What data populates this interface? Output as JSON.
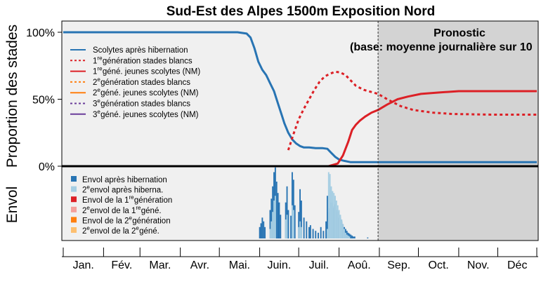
{
  "chart_data": {
    "type": "line",
    "title": "Sud-Est des Alpes 1500m Exposition Nord",
    "ylabel_top": "Proportion des stades",
    "ylabel_bottom": "Envol",
    "yticks": [
      {
        "label": "100%",
        "value": 1.0
      },
      {
        "label": "50%",
        "value": 0.5
      },
      {
        "label": "0%",
        "value": 0.0
      }
    ],
    "ylim": [
      0,
      1
    ],
    "months": [
      "Jan.",
      "Fév.",
      "Mar.",
      "Avr.",
      "Mai.",
      "Juin.",
      "Juil.",
      "Aoû.",
      "Sep.",
      "Oct.",
      "Nov.",
      "Déc"
    ],
    "xlim_days": [
      1,
      365
    ],
    "forecast_start_day": 243,
    "forecast_label": "Pronostic",
    "forecast_sublabel": "(base: moyenne journalière sur 10",
    "colors": {
      "blue": "#2874b3",
      "red": "#dc2026",
      "orange": "#ff7f0e",
      "purple": "#6a3d9a",
      "lightblue": "#a6cee3",
      "pink": "#f4a09b",
      "lightorange": "#fdbf6f",
      "panel": "#f0f0f0",
      "forecast": "#d3d3d3"
    },
    "legend_top": [
      {
        "text": "Scolytes après hibernation",
        "sup": "",
        "text2": "",
        "color": "#2874b3",
        "dash": false
      },
      {
        "text": "1",
        "sup": "re",
        "text2": " génération stades blancs",
        "color": "#dc2026",
        "dash": true
      },
      {
        "text": "1",
        "sup": "re",
        "text2": " géné. jeunes scolytes (NM)",
        "color": "#dc2026",
        "dash": false
      },
      {
        "text": "2",
        "sup": "e",
        "text2": " génération stades blancs",
        "color": "#ff7f0e",
        "dash": true
      },
      {
        "text": "2",
        "sup": "e",
        "text2": " géné. jeunes scolytes (NM)",
        "color": "#ff7f0e",
        "dash": false
      },
      {
        "text": "3",
        "sup": "e",
        "text2": " génération stades blancs",
        "color": "#6a3d9a",
        "dash": true
      },
      {
        "text": "3",
        "sup": "e",
        "text2": " géné. jeunes scolytes (NM)",
        "color": "#6a3d9a",
        "dash": false
      }
    ],
    "legend_bottom": [
      {
        "text": "Envol après hibernation",
        "sup": "",
        "text2": "",
        "color": "#2874b3"
      },
      {
        "text": "2",
        "sup": "e",
        "text2": " envol après hiberna.",
        "color": "#a6cee3"
      },
      {
        "text": "Envol de la 1",
        "sup": "re",
        "text2": " génération",
        "color": "#dc2026"
      },
      {
        "text": "2",
        "sup": "e",
        "text2": " envol de la 1",
        "sup2": "re",
        "text3": " géné.",
        "color": "#f4a09b"
      },
      {
        "text": "Envol de la 2",
        "sup": "e",
        "text2": " génération",
        "color": "#ff7f0e"
      },
      {
        "text": "2",
        "sup": "e",
        "text2": " envol de la 2",
        "sup2": "e",
        "text3": " géné.",
        "color": "#fdbf6f"
      }
    ],
    "series": [
      {
        "name": "Scolytes après hibernation",
        "color": "#2874b3",
        "dash": false,
        "points": [
          [
            1,
            1.0
          ],
          [
            135,
            1.0
          ],
          [
            142,
            0.99
          ],
          [
            145,
            0.96
          ],
          [
            148,
            0.88
          ],
          [
            151,
            0.78
          ],
          [
            154,
            0.72
          ],
          [
            157,
            0.68
          ],
          [
            160,
            0.62
          ],
          [
            163,
            0.56
          ],
          [
            166,
            0.47
          ],
          [
            169,
            0.38
          ],
          [
            171,
            0.32
          ],
          [
            174,
            0.25
          ],
          [
            177,
            0.2
          ],
          [
            180,
            0.17
          ],
          [
            183,
            0.15
          ],
          [
            186,
            0.14
          ],
          [
            190,
            0.14
          ],
          [
            195,
            0.135
          ],
          [
            200,
            0.135
          ],
          [
            204,
            0.13
          ],
          [
            207,
            0.1
          ],
          [
            210,
            0.07
          ],
          [
            213,
            0.05
          ],
          [
            217,
            0.04
          ],
          [
            222,
            0.03
          ],
          [
            230,
            0.03
          ],
          [
            243,
            0.03
          ],
          [
            365,
            0.03
          ]
        ]
      },
      {
        "name": "1re génération stades blancs",
        "color": "#dc2026",
        "dash": true,
        "points": [
          [
            174,
            0.12
          ],
          [
            178,
            0.24
          ],
          [
            182,
            0.35
          ],
          [
            186,
            0.43
          ],
          [
            190,
            0.5
          ],
          [
            194,
            0.57
          ],
          [
            198,
            0.63
          ],
          [
            202,
            0.67
          ],
          [
            206,
            0.69
          ],
          [
            210,
            0.705
          ],
          [
            214,
            0.7
          ],
          [
            218,
            0.68
          ],
          [
            222,
            0.64
          ],
          [
            226,
            0.6
          ],
          [
            232,
            0.57
          ],
          [
            243,
            0.54
          ],
          [
            250,
            0.5
          ],
          [
            260,
            0.45
          ],
          [
            270,
            0.42
          ],
          [
            285,
            0.4
          ],
          [
            300,
            0.39
          ],
          [
            330,
            0.385
          ],
          [
            365,
            0.385
          ]
        ]
      },
      {
        "name": "1re géné. jeunes scolytes (NM)",
        "color": "#dc2026",
        "dash": false,
        "points": [
          [
            1,
            0.0
          ],
          [
            205,
            0.0
          ],
          [
            212,
            0.02
          ],
          [
            216,
            0.08
          ],
          [
            220,
            0.18
          ],
          [
            223,
            0.27
          ],
          [
            226,
            0.31
          ],
          [
            229,
            0.34
          ],
          [
            233,
            0.37
          ],
          [
            238,
            0.4
          ],
          [
            243,
            0.42
          ],
          [
            250,
            0.46
          ],
          [
            258,
            0.5
          ],
          [
            266,
            0.52
          ],
          [
            276,
            0.54
          ],
          [
            290,
            0.55
          ],
          [
            305,
            0.56
          ],
          [
            330,
            0.56
          ],
          [
            365,
            0.56
          ]
        ]
      }
    ],
    "flights": {
      "blue": [
        [
          152,
          12
        ],
        [
          153,
          16
        ],
        [
          154,
          22
        ],
        [
          155,
          18
        ],
        [
          156,
          12
        ],
        [
          160,
          30
        ],
        [
          161,
          42
        ],
        [
          162,
          55
        ],
        [
          163,
          70
        ],
        [
          164,
          75
        ],
        [
          165,
          60
        ],
        [
          166,
          48
        ],
        [
          167,
          38
        ],
        [
          168,
          25
        ],
        [
          172,
          38
        ],
        [
          173,
          55
        ],
        [
          174,
          30
        ],
        [
          176,
          24
        ],
        [
          177,
          70
        ],
        [
          178,
          62
        ],
        [
          179,
          35
        ],
        [
          182,
          28
        ],
        [
          183,
          52
        ],
        [
          184,
          40
        ],
        [
          186,
          22
        ],
        [
          188,
          18
        ],
        [
          190,
          12
        ],
        [
          191,
          14
        ],
        [
          193,
          10
        ],
        [
          195,
          8
        ],
        [
          197,
          6
        ],
        [
          199,
          12
        ],
        [
          201,
          8
        ],
        [
          203,
          18
        ],
        [
          204,
          45
        ],
        [
          205,
          28
        ],
        [
          206,
          32
        ],
        [
          207,
          38
        ],
        [
          208,
          32
        ],
        [
          209,
          34
        ],
        [
          210,
          36
        ],
        [
          211,
          30
        ],
        [
          212,
          28
        ],
        [
          213,
          22
        ],
        [
          214,
          22
        ],
        [
          215,
          18
        ],
        [
          216,
          15
        ],
        [
          217,
          12
        ],
        [
          218,
          10
        ],
        [
          219,
          8
        ],
        [
          220,
          6
        ],
        [
          221,
          5
        ],
        [
          222,
          4
        ],
        [
          223,
          3
        ],
        [
          224,
          2
        ],
        [
          225,
          2
        ],
        [
          235,
          1
        ]
      ],
      "lightblue": [
        [
          160,
          10
        ],
        [
          161,
          18
        ],
        [
          162,
          28
        ],
        [
          163,
          40
        ],
        [
          164,
          45
        ],
        [
          172,
          20
        ],
        [
          173,
          25
        ],
        [
          177,
          35
        ],
        [
          178,
          30
        ],
        [
          182,
          12
        ],
        [
          183,
          18
        ],
        [
          184,
          12
        ],
        [
          204,
          10
        ],
        [
          205,
          70
        ],
        [
          206,
          68
        ],
        [
          207,
          55
        ],
        [
          208,
          50
        ],
        [
          209,
          48
        ],
        [
          210,
          45
        ],
        [
          211,
          40
        ],
        [
          212,
          35
        ],
        [
          213,
          30
        ],
        [
          214,
          25
        ],
        [
          215,
          20
        ],
        [
          216,
          15
        ],
        [
          217,
          10
        ],
        [
          218,
          6
        ],
        [
          219,
          4
        ],
        [
          220,
          3
        ],
        [
          221,
          2
        ]
      ]
    }
  }
}
